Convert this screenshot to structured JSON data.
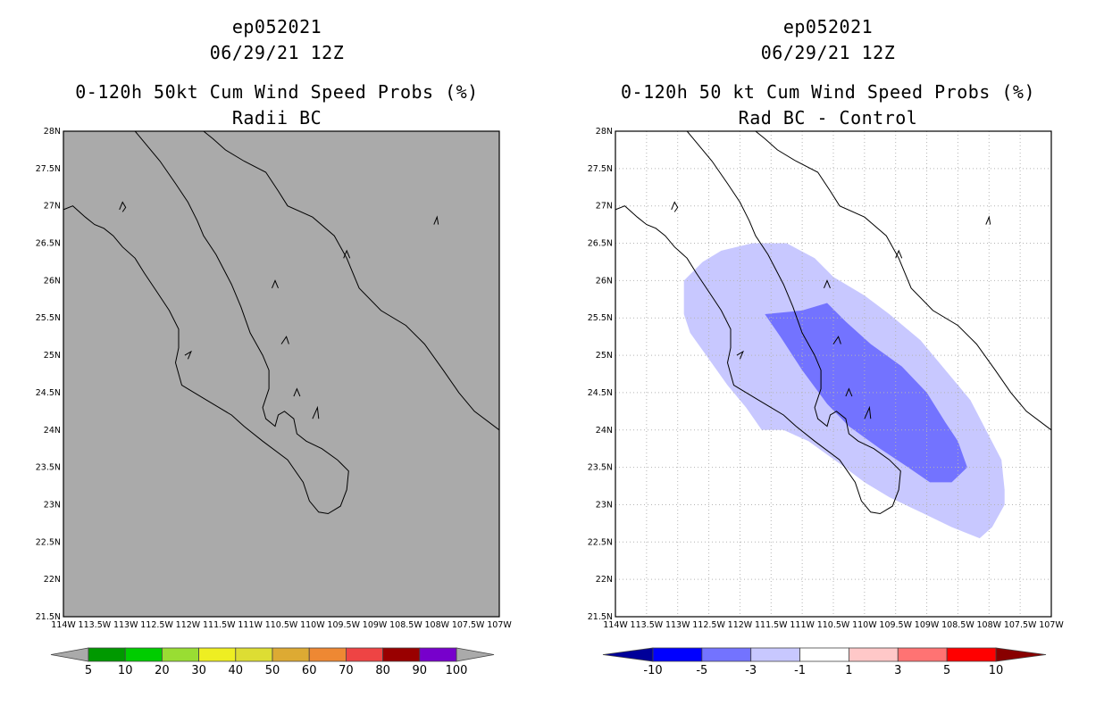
{
  "panels": [
    {
      "id": "left",
      "storm_id": "ep052021",
      "datetime": "06/29/21 12Z",
      "title": "0-120h 50kt Cum Wind Speed Probs (%)",
      "subtitle": "Radii BC"
    },
    {
      "id": "right",
      "storm_id": "ep052021",
      "datetime": "06/29/21 12Z",
      "title": "0-120h 50 kt Cum Wind Speed Probs (%)",
      "subtitle": "Rad BC - Control"
    }
  ],
  "chart_data": [
    {
      "type": "heatmap",
      "title": "0-120h 50kt Cum Wind Speed Probs (%)",
      "subtitle": "Radii BC",
      "xlim": [
        -114,
        -107
      ],
      "ylim": [
        21.5,
        28
      ],
      "x_ticks": [
        "114W",
        "113.5W",
        "113W",
        "112.5W",
        "112W",
        "111.5W",
        "111W",
        "110.5W",
        "110W",
        "109.5W",
        "109W",
        "108.5W",
        "108W",
        "107.5W",
        "107W"
      ],
      "y_ticks": [
        "21.5N",
        "22N",
        "22.5N",
        "23N",
        "23.5N",
        "24N",
        "24.5N",
        "25N",
        "25.5N",
        "26N",
        "26.5N",
        "27N",
        "27.5N",
        "28N"
      ],
      "grid": false,
      "background": "#aaaaaa",
      "colorbar": {
        "labels": [
          "5",
          "10",
          "20",
          "30",
          "40",
          "50",
          "60",
          "70",
          "80",
          "90",
          "100"
        ],
        "colors": [
          "#009900",
          "#00cc00",
          "#99dd33",
          "#eeee22",
          "#dddd33",
          "#ddaa33",
          "#ee8833",
          "#ee4444",
          "#990000",
          "#7700cc"
        ],
        "end_colors": [
          "#aaaaaa",
          "#aaaaaa"
        ]
      },
      "contours": []
    },
    {
      "type": "heatmap",
      "title": "0-120h 50 kt Cum Wind Speed Probs (%)",
      "subtitle": "Rad BC - Control",
      "xlim": [
        -114,
        -107
      ],
      "ylim": [
        21.5,
        28
      ],
      "x_ticks": [
        "114W",
        "113.5W",
        "113W",
        "112.5W",
        "112W",
        "111.5W",
        "111W",
        "110.5W",
        "110W",
        "109.5W",
        "109W",
        "108.5W",
        "108W",
        "107.5W",
        "107W"
      ],
      "y_ticks": [
        "21.5N",
        "22N",
        "22.5N",
        "23N",
        "23.5N",
        "24N",
        "24.5N",
        "25N",
        "25.5N",
        "26N",
        "26.5N",
        "27N",
        "27.5N",
        "28N"
      ],
      "grid": true,
      "background": "#ffffff",
      "colorbar": {
        "labels": [
          "-10",
          "-5",
          "-3",
          "-1",
          "1",
          "3",
          "5",
          "10"
        ],
        "colors": [
          "#0000ff",
          "#7373ff",
          "#c8c8ff",
          "#ffffff",
          "#ffc8c8",
          "#ff7373",
          "#ff0000"
        ],
        "end_colors": [
          "#000099",
          "#880000"
        ]
      },
      "contours": [
        {
          "range": "-3 to -1",
          "color": "#c8c8ff",
          "polygon": [
            [
              -112.9,
              26.0
            ],
            [
              -112.6,
              26.25
            ],
            [
              -112.3,
              26.4
            ],
            [
              -111.8,
              26.5
            ],
            [
              -111.25,
              26.5
            ],
            [
              -110.8,
              26.3
            ],
            [
              -110.5,
              26.05
            ],
            [
              -110.0,
              25.8
            ],
            [
              -109.6,
              25.55
            ],
            [
              -109.1,
              25.2
            ],
            [
              -108.7,
              24.8
            ],
            [
              -108.3,
              24.4
            ],
            [
              -108.05,
              24.0
            ],
            [
              -107.8,
              23.6
            ],
            [
              -107.75,
              23.2
            ],
            [
              -107.75,
              23.0
            ],
            [
              -107.95,
              22.7
            ],
            [
              -108.15,
              22.55
            ],
            [
              -108.6,
              22.7
            ],
            [
              -109.1,
              22.9
            ],
            [
              -109.6,
              23.1
            ],
            [
              -110.0,
              23.3
            ],
            [
              -110.4,
              23.55
            ],
            [
              -110.9,
              23.85
            ],
            [
              -111.3,
              24.0
            ],
            [
              -111.65,
              24.0
            ],
            [
              -111.9,
              24.3
            ],
            [
              -112.2,
              24.6
            ],
            [
              -112.5,
              24.95
            ],
            [
              -112.8,
              25.3
            ],
            [
              -112.9,
              25.55
            ]
          ]
        },
        {
          "range": "-5 to -3",
          "color": "#7373ff",
          "polygon": [
            [
              -111.6,
              25.55
            ],
            [
              -111.0,
              25.6
            ],
            [
              -110.6,
              25.7
            ],
            [
              -110.3,
              25.45
            ],
            [
              -109.9,
              25.15
            ],
            [
              -109.4,
              24.85
            ],
            [
              -109.0,
              24.5
            ],
            [
              -108.7,
              24.1
            ],
            [
              -108.5,
              23.85
            ],
            [
              -108.35,
              23.5
            ],
            [
              -108.6,
              23.3
            ],
            [
              -108.95,
              23.3
            ],
            [
              -109.3,
              23.5
            ],
            [
              -109.75,
              23.75
            ],
            [
              -110.25,
              24.05
            ],
            [
              -110.6,
              24.35
            ],
            [
              -111.0,
              24.8
            ],
            [
              -111.35,
              25.25
            ]
          ]
        }
      ]
    }
  ]
}
